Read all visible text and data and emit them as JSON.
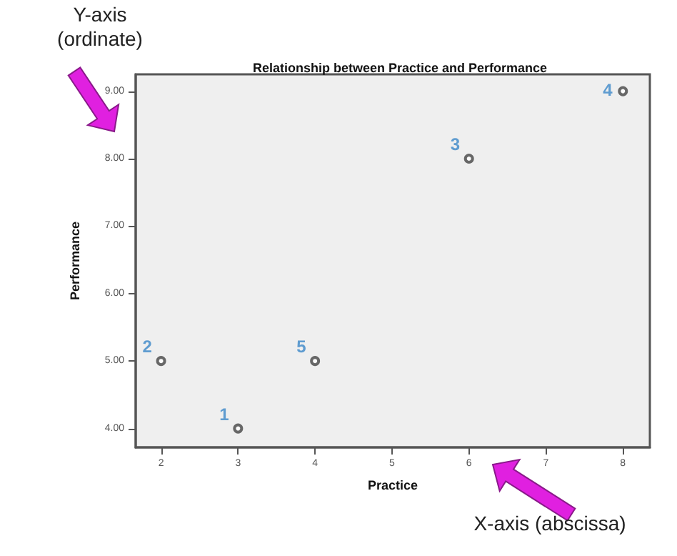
{
  "chart_data": {
    "type": "scatter",
    "title": "Relationship between Practice and Performance",
    "xlabel": "Practice",
    "ylabel": "Performance",
    "x": [
      3,
      2,
      6,
      8,
      4
    ],
    "values": [
      4,
      5,
      8,
      9,
      5
    ],
    "color": "#444444",
    "marker": "circle",
    "grid": false,
    "xlim": [
      1.67,
      8.35
    ],
    "xticks": [
      2,
      3,
      4,
      5,
      6,
      7,
      8
    ],
    "ylim": [
      3.72,
      9.25
    ],
    "yticks": [
      {
        "value": 4,
        "label": "4.00"
      },
      {
        "value": 5,
        "label": "5.00"
      },
      {
        "value": 6,
        "label": "6.00"
      },
      {
        "value": 7,
        "label": "7.00"
      },
      {
        "value": 8,
        "label": "8.00"
      },
      {
        "value": 9,
        "label": "9.00"
      }
    ],
    "annotations": [
      {
        "text": "1",
        "x": 3,
        "y": 4
      },
      {
        "text": "2",
        "x": 2,
        "y": 5
      },
      {
        "text": "3",
        "x": 6,
        "y": 8
      },
      {
        "text": "4",
        "x": 8,
        "y": 9
      },
      {
        "text": "5",
        "x": 4,
        "y": 5
      },
      "Y-axis\n(ordinate)",
      "X-axis (abscissa)"
    ]
  }
}
